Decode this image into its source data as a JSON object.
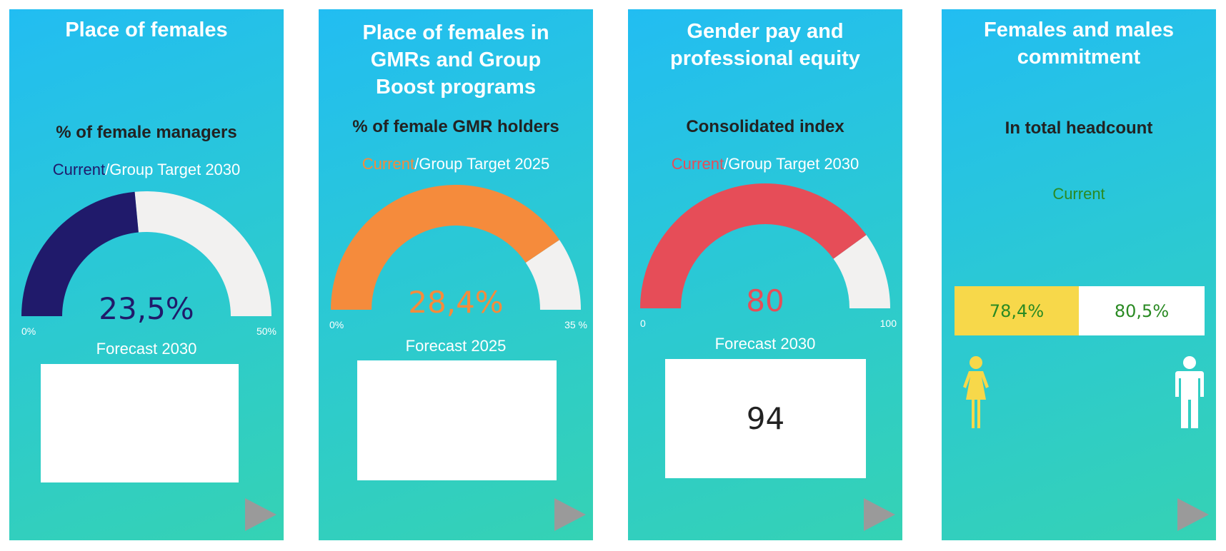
{
  "colors": {
    "navy": "#201a6b",
    "orange": "#f58b3c",
    "red": "#e64d58",
    "track": "#f2f1f0",
    "yellow": "#f7d84a",
    "green": "#2a8a23",
    "arrow": "#9a9a9a"
  },
  "cards": [
    {
      "title": "Place of females",
      "subtitle": "% of female managers",
      "legend_current": "Current",
      "legend_rest": "/Group Target 2030",
      "value": "23,5%",
      "gauge_fill": 0.47,
      "min_label": "0%",
      "max_label": "50%",
      "forecast_label": "Forecast 2030",
      "forecast_value": "",
      "next_icon": "play-triangle-icon"
    },
    {
      "title": "Place of females in GMRs and Group Boost programs",
      "subtitle": "% of female GMR holders",
      "legend_current": "Current",
      "legend_rest": "/Group Target 2025",
      "value": "28,4%",
      "gauge_fill": 0.811,
      "min_label": "0%",
      "max_label": "35 %",
      "forecast_label": "Forecast 2025",
      "forecast_value": "",
      "next_icon": "play-triangle-icon"
    },
    {
      "title": "Gender pay and professional equity",
      "subtitle": "Consolidated index",
      "legend_current": "Current",
      "legend_rest": "/Group Target 2030",
      "value": "80",
      "gauge_fill": 0.8,
      "min_label": "0",
      "max_label": "100",
      "forecast_label": "Forecast 2030",
      "forecast_value": "94",
      "next_icon": "play-triangle-icon"
    },
    {
      "title": "Females and males commitment",
      "subtitle": "In total headcount",
      "legend_current": "Current",
      "female_value": "78,4%",
      "male_value": "80,5%",
      "female_icon": "female-person-icon",
      "male_icon": "male-person-icon",
      "next_icon": "play-triangle-icon"
    }
  ]
}
